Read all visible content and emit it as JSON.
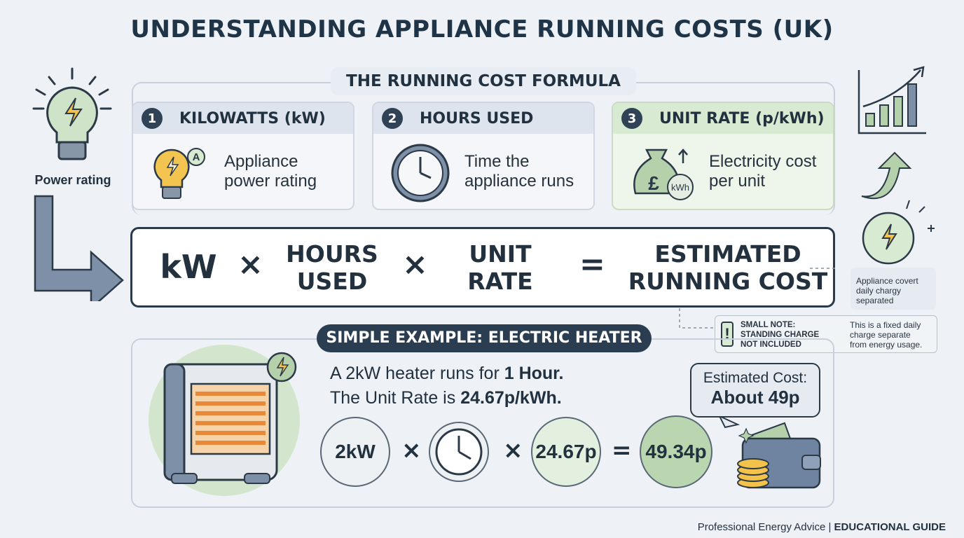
{
  "header": {
    "title": "UNDERSTANDING APPLIANCE RUNNING COSTS (UK)"
  },
  "side": {
    "left_label": "Power rating",
    "right_note": [
      "Appliance covert",
      "daily chargy",
      "separated"
    ]
  },
  "formula": {
    "title": "THE RUNNING COST FORMULA",
    "cards": [
      {
        "number": "1",
        "title": "KILOWATTS (kW)",
        "icon_text": "A",
        "desc": [
          "Appliance",
          "power rating"
        ]
      },
      {
        "number": "2",
        "title": "HOURS USED",
        "desc": [
          "Time the",
          "appliance runs"
        ]
      },
      {
        "number": "3",
        "title": "UNIT RATE (p/kWh)",
        "icon_text": [
          "£",
          "kWh"
        ],
        "desc": [
          "Electricity cost",
          "per unit"
        ]
      }
    ],
    "equation": {
      "terms": [
        [
          "kW"
        ],
        [
          "HOURS",
          "USED"
        ],
        [
          "UNIT",
          "RATE"
        ],
        [
          "ESTIMATED",
          "RUNNING COST"
        ]
      ],
      "operators": [
        "×",
        "×",
        "="
      ]
    }
  },
  "note": {
    "mark": "!",
    "title": [
      "SMALL NOTE:",
      "STANDING CHARGE",
      "NOT INCLUDED"
    ],
    "text": [
      "This is a fixed daily",
      "charge separate",
      "from energy usage."
    ]
  },
  "example": {
    "title": "SIMPLE EXAMPLE: ELECTRIC HEATER",
    "lines": [
      [
        "A 2kW heater runs for ",
        "1 Hour."
      ],
      [
        "The Unit Rate is ",
        "24.67p/kWh."
      ]
    ],
    "circles": [
      "2kW",
      "24.67p",
      "49.34p"
    ],
    "operators": [
      "×",
      "×",
      "="
    ],
    "bubble": [
      "Estimated Cost:",
      "About 49p"
    ]
  },
  "footer": [
    "Professional Energy Advice | ",
    "EDUCATIONAL GUIDE"
  ]
}
